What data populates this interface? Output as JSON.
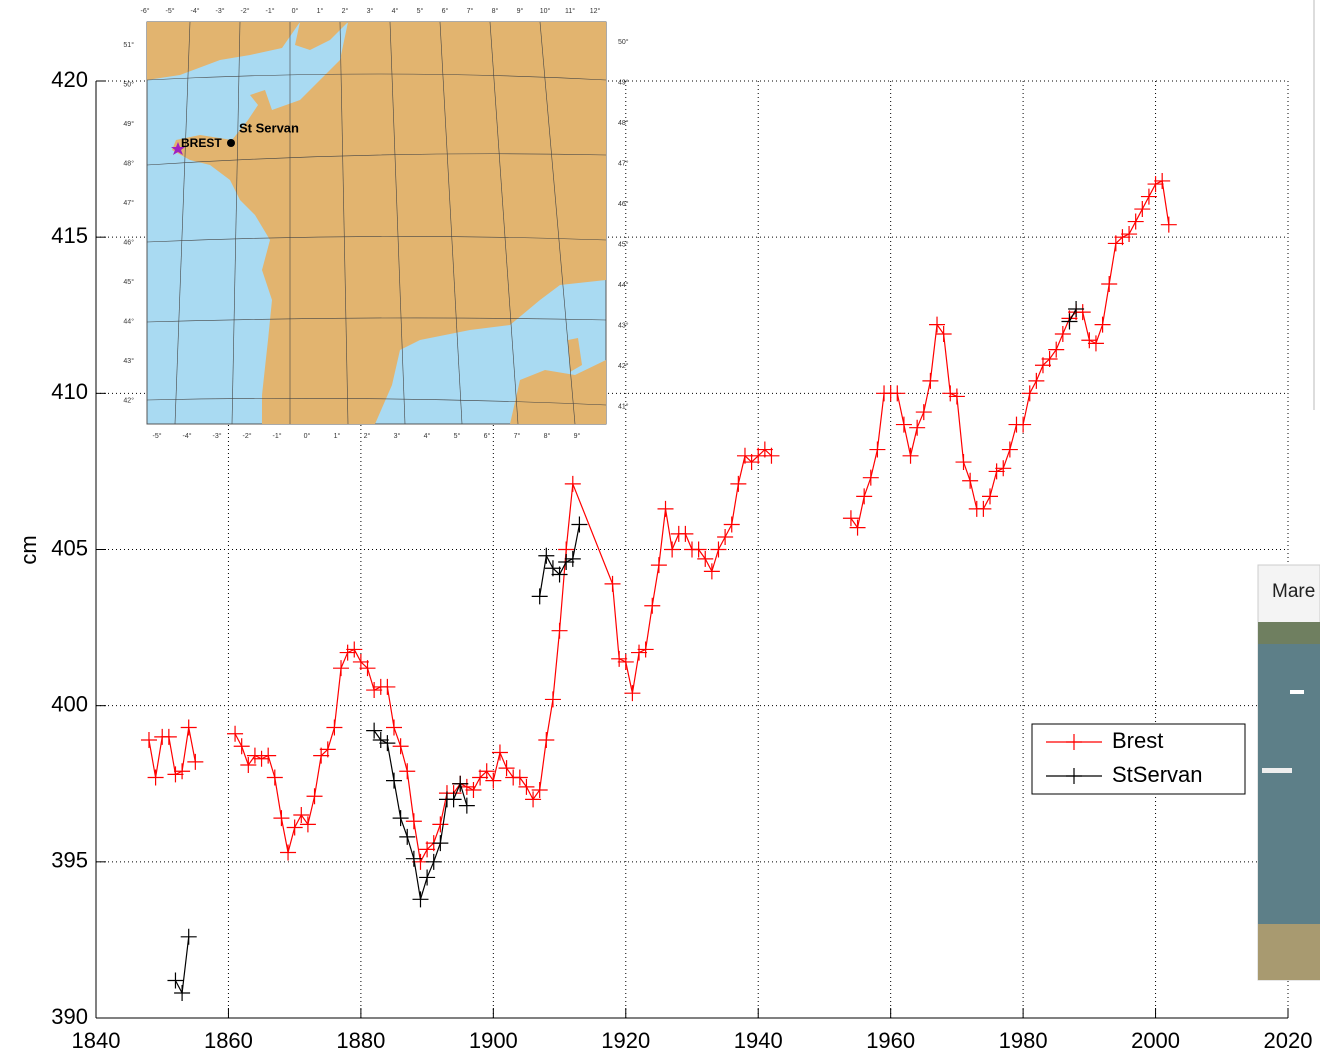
{
  "chart_data": {
    "type": "line",
    "xlabel": "",
    "ylabel": "cm",
    "xlim": [
      1840,
      2020
    ],
    "xticks": [
      1840,
      1860,
      1880,
      1900,
      1920,
      1940,
      1960,
      1980,
      2000,
      2020
    ],
    "ylim": [
      390,
      420
    ],
    "yticks": [
      390,
      395,
      400,
      405,
      410,
      415,
      420
    ],
    "grid": true,
    "legend": "lower right",
    "marker": "+",
    "series": [
      {
        "name": "Brest",
        "color": "#ff0000",
        "x": [
          1848,
          1849,
          1850,
          1851,
          1852,
          1853,
          1854,
          1855,
          1858,
          1861,
          1862,
          1863,
          1864,
          1865,
          1866,
          1867,
          1868,
          1869,
          1870,
          1871,
          1872,
          1873,
          1874,
          1875,
          1876,
          1877,
          1878,
          1879,
          1880,
          1881,
          1882,
          1883,
          1884,
          1885,
          1886,
          1887,
          1888,
          1889,
          1890,
          1891,
          1892,
          1893,
          1894,
          1895,
          1896,
          1897,
          1898,
          1899,
          1900,
          1901,
          1902,
          1903,
          1904,
          1905,
          1906,
          1907,
          1908,
          1909,
          1910,
          1911,
          1912,
          1918,
          1919,
          1920,
          1921,
          1922,
          1923,
          1924,
          1925,
          1926,
          1927,
          1928,
          1929,
          1930,
          1931,
          1932,
          1933,
          1934,
          1935,
          1936,
          1937,
          1938,
          1939,
          1940,
          1941,
          1942,
          1948,
          1954,
          1955,
          1956,
          1957,
          1958,
          1959,
          1960,
          1961,
          1962,
          1963,
          1964,
          1965,
          1966,
          1967,
          1968,
          1969,
          1970,
          1971,
          1972,
          1973,
          1974,
          1975,
          1976,
          1977,
          1978,
          1979,
          1980,
          1981,
          1982,
          1983,
          1984,
          1985,
          1986,
          1987,
          1988,
          1989,
          1990,
          1991,
          1992,
          1993,
          1994,
          1995,
          1996,
          1997,
          1998,
          1999,
          2000,
          2001,
          2002
        ],
        "values": [
          398.9,
          397.7,
          399.0,
          399.0,
          397.8,
          397.9,
          399.3,
          398.2,
          null,
          399.1,
          398.7,
          398.1,
          398.4,
          398.3,
          398.4,
          397.7,
          396.4,
          395.3,
          396.1,
          396.5,
          396.2,
          397.1,
          398.4,
          398.6,
          399.3,
          401.2,
          401.7,
          401.8,
          401.4,
          401.2,
          400.5,
          400.6,
          400.6,
          399.3,
          398.7,
          397.9,
          396.3,
          395.0,
          395.4,
          395.6,
          396.2,
          397.2,
          397.2,
          397.5,
          397.4,
          397.3,
          397.7,
          397.9,
          397.6,
          398.5,
          398.0,
          397.7,
          397.7,
          397.4,
          397.0,
          397.3,
          398.9,
          400.2,
          402.4,
          405.0,
          407.1,
          403.9,
          401.5,
          401.4,
          400.4,
          401.7,
          401.8,
          403.2,
          404.5,
          406.3,
          405.0,
          405.5,
          405.5,
          405.0,
          405.0,
          404.7,
          404.3,
          405.0,
          405.4,
          405.8,
          407.1,
          408.0,
          407.8,
          408.0,
          408.2,
          408.0,
          null,
          406.0,
          405.7,
          406.7,
          407.3,
          408.2,
          410.0,
          410.0,
          410.0,
          409.0,
          408.0,
          408.9,
          409.4,
          410.4,
          412.2,
          411.9,
          410.0,
          409.9,
          407.8,
          407.2,
          406.3,
          406.3,
          406.7,
          407.5,
          407.6,
          408.2,
          409.0,
          409.0,
          410.0,
          410.4,
          410.9,
          411.1,
          411.4,
          411.9,
          412.4,
          412.6,
          412.6,
          411.7,
          411.6,
          412.2,
          413.5,
          414.8,
          415.0,
          415.1,
          415.5,
          415.9,
          416.3,
          416.7,
          416.8,
          415.4
        ]
      },
      {
        "name": "StServan",
        "color": "#000000",
        "x": [
          1852,
          1853,
          1854,
          1870,
          1882,
          1883,
          1884,
          1885,
          1886,
          1887,
          1888,
          1889,
          1890,
          1891,
          1892,
          1893,
          1894,
          1895,
          1896,
          1900,
          1907,
          1908,
          1909,
          1910,
          1911,
          1912,
          1913,
          1950,
          1987,
          1988
        ],
        "values": [
          391.2,
          390.8,
          392.6,
          null,
          399.2,
          398.9,
          398.8,
          397.6,
          396.4,
          395.8,
          395.1,
          393.8,
          394.5,
          395.0,
          395.6,
          397.0,
          397.0,
          397.5,
          396.8,
          null,
          403.5,
          404.8,
          404.4,
          404.2,
          404.6,
          404.7,
          405.8,
          null,
          412.3,
          412.7
        ]
      }
    ]
  },
  "map": {
    "labels": {
      "brest": "BREST",
      "st_servan": "St Servan"
    },
    "top_ticks": [
      "-6°",
      "-5°",
      "-4°",
      "-3°",
      "-2°",
      "-1°",
      "0°",
      "1°",
      "2°",
      "3°",
      "4°",
      "5°",
      "6°",
      "7°",
      "8°",
      "9°",
      "10°",
      "11°",
      "12°"
    ],
    "bottom_ticks": [
      "-5°",
      "-4°",
      "-3°",
      "-2°",
      "-1°",
      "0°",
      "1°",
      "2°",
      "3°",
      "4°",
      "5°",
      "6°",
      "7°",
      "8°",
      "9°"
    ],
    "left_ticks": [
      "51°",
      "50°",
      "49°",
      "48°",
      "47°",
      "46°",
      "45°",
      "44°",
      "43°",
      "42°"
    ],
    "right_ticks": [
      "50°",
      "49°",
      "48°",
      "47°",
      "46°",
      "45°",
      "44°",
      "43°",
      "42°",
      "41°"
    ]
  },
  "photo": {
    "caption": "Mare"
  }
}
